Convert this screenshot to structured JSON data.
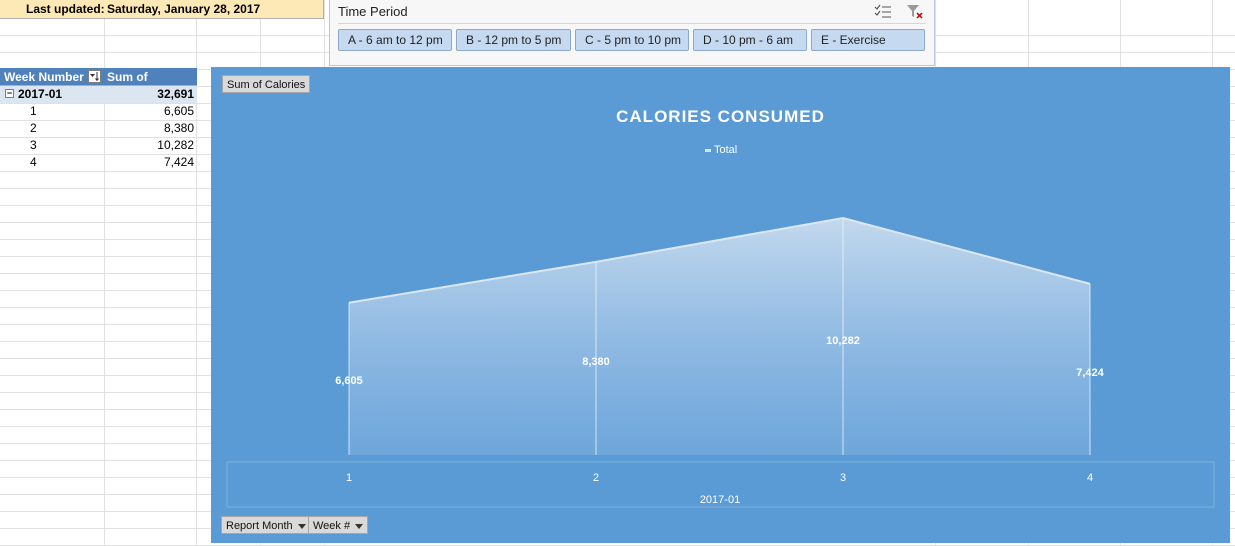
{
  "sheet": {
    "last_updated_label": "Last updated:",
    "last_updated_value": "Saturday, January 28, 2017"
  },
  "slicer": {
    "title": "Time Period",
    "buttons": [
      "A - 6 am to 12 pm",
      "B - 12 pm to 5 pm",
      "C - 5 pm to 10 pm",
      "D - 10 pm - 6 am",
      "E - Exercise"
    ],
    "icons": [
      "multi-select-icon",
      "clear-filter-icon"
    ]
  },
  "pivot": {
    "col1": "Week Number",
    "col2": "Sum of Calories",
    "group": {
      "label": "2017-01",
      "value": "32,691",
      "toggle": "−"
    },
    "rows": [
      {
        "key": "1",
        "value": "6,605"
      },
      {
        "key": "2",
        "value": "8,380"
      },
      {
        "key": "3",
        "value": "10,282"
      },
      {
        "key": "4",
        "value": "7,424"
      }
    ]
  },
  "chart_buttons": {
    "values_field": "Sum of Calories",
    "axis_fields": [
      "Report Month",
      "Week #"
    ]
  },
  "chart_data": {
    "type": "area",
    "title": "CALORIES CONSUMED",
    "categories": [
      "1",
      "2",
      "3",
      "4"
    ],
    "group_label": "2017-01",
    "series": [
      {
        "name": "Total",
        "values": [
          6605,
          8380,
          10282,
          7424
        ]
      }
    ],
    "data_labels": [
      "6,605",
      "8,380",
      "10,282",
      "7,424"
    ],
    "legend_position": "top",
    "grid": false,
    "colors": {
      "background": "#5b9bd5",
      "fill_top": "#c9dcef",
      "fill_bottom": "#7fb0e0",
      "line": "#dbe7f4"
    }
  }
}
